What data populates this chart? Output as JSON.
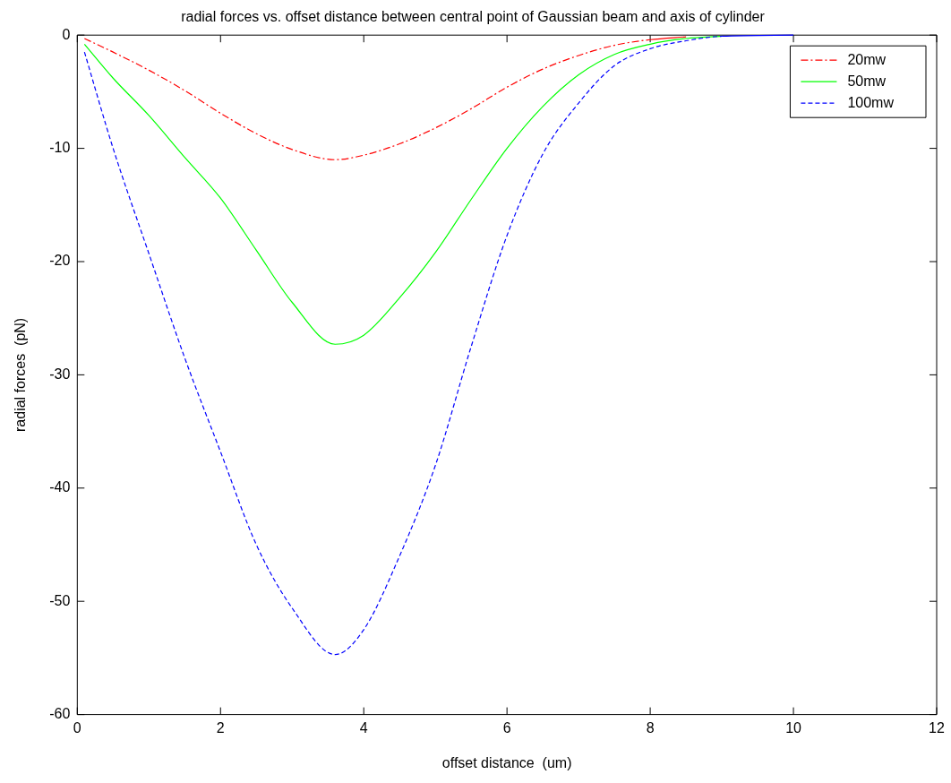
{
  "chart_data": {
    "type": "line",
    "title": "radial forces vs. offset distance between central point of Gaussian beam and axis of cylinder",
    "xlabel": "offset distance  (um)",
    "ylabel": "radial forces  (pN)",
    "x": [
      0.1,
      0.5,
      1,
      1.5,
      2,
      2.5,
      3,
      3.6,
      4,
      4.5,
      5,
      5.5,
      6,
      6.5,
      7,
      7.5,
      8,
      8.5,
      9,
      10
    ],
    "series": [
      {
        "name": "20mw",
        "color": "#ff0000",
        "line_style": "dashdot",
        "values": [
          -0.3,
          -1.5,
          -3.1,
          -4.9,
          -6.9,
          -8.7,
          -10.1,
          -11,
          -10.6,
          -9.6,
          -8.2,
          -6.5,
          -4.6,
          -3,
          -1.8,
          -0.9,
          -0.4,
          -0.15,
          null,
          null
        ]
      },
      {
        "name": "50mw",
        "color": "#00ff00",
        "line_style": "solid",
        "values": [
          -0.8,
          -3.8,
          -7.1,
          -10.8,
          -14.4,
          -19,
          -23.6,
          -27.3,
          -26.5,
          -23.2,
          -19.2,
          -14.5,
          -10,
          -6.3,
          -3.5,
          -1.7,
          -0.8,
          -0.3,
          -0.1,
          null
        ]
      },
      {
        "name": "100mw",
        "color": "#0000ff",
        "line_style": "dashed",
        "values": [
          -1.5,
          -10,
          -19.3,
          -28.5,
          -36.8,
          -45,
          -50.6,
          -54.7,
          -52.5,
          -46,
          -38,
          -27.5,
          -17.7,
          -10.5,
          -6,
          -2.7,
          -1.2,
          -0.5,
          -0.1,
          0
        ]
      }
    ],
    "xlim": [
      0,
      12
    ],
    "xticks": [
      0,
      2,
      4,
      6,
      8,
      10,
      12
    ],
    "ylim": [
      -60,
      0
    ],
    "yticks": [
      -60,
      -50,
      -40,
      -30,
      -20,
      -10,
      0
    ],
    "grid": false,
    "legend": "top right",
    "marker": "none"
  }
}
